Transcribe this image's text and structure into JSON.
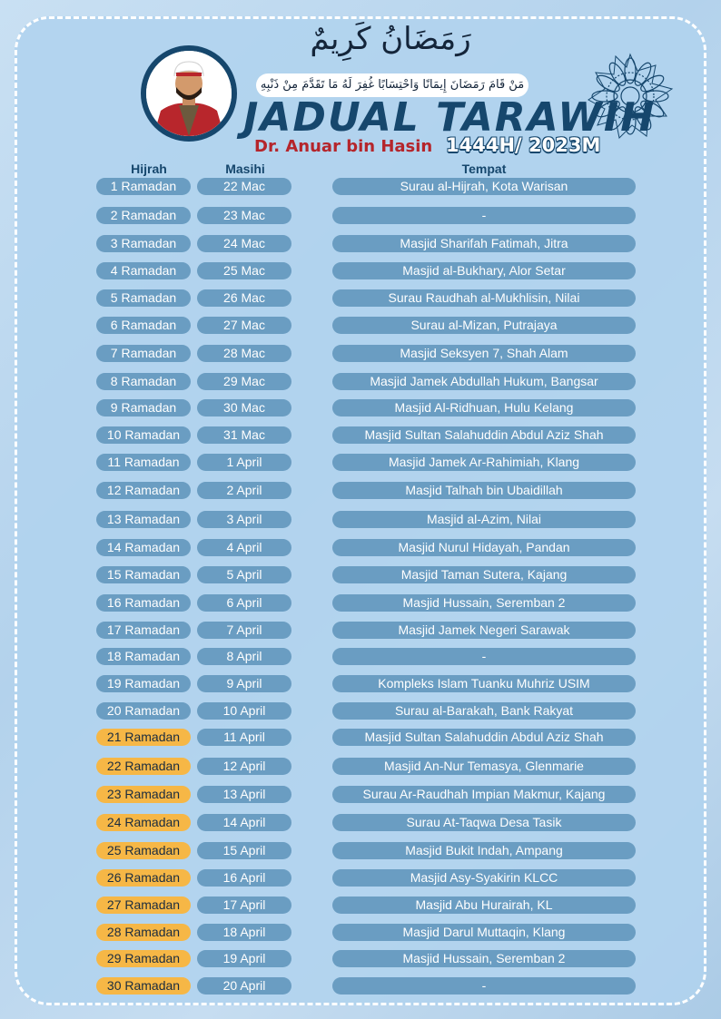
{
  "header": {
    "arabic_title": "رَمَضَانُ كَرِيمٌ",
    "arabic_hadith": "مَنْ قَامَ رَمَضَانَ إِيمَانًا وَاحْتِسَابًا غُفِرَ لَهُ مَا تَقَدَّمَ مِنْ ذَنْبِهِ",
    "title": "JADUAL TARAWIH",
    "author": "Dr. Anuar bin Hasin",
    "year": "1444H/ 2023M"
  },
  "columns": {
    "hijrah": "Hijrah",
    "masihi": "Masihi",
    "tempat": "Tempat"
  },
  "colors": {
    "blue_pill": "#6a9dc2",
    "orange_pill": "#f6b746",
    "navy": "#16476d",
    "red": "#b5252b"
  },
  "rows": [
    {
      "hijrah": "1 Ramadan",
      "masihi": "22 Mac",
      "tempat": "Surau al-Hijrah, Kota Warisan",
      "highlight": false
    },
    {
      "hijrah": "2 Ramadan",
      "masihi": "23 Mac",
      "tempat": "-",
      "highlight": false
    },
    {
      "hijrah": "3 Ramadan",
      "masihi": "24 Mac",
      "tempat": "Masjid Sharifah Fatimah, Jitra",
      "highlight": false
    },
    {
      "hijrah": "4 Ramadan",
      "masihi": "25 Mac",
      "tempat": "Masjid al-Bukhary, Alor Setar",
      "highlight": false
    },
    {
      "hijrah": "5 Ramadan",
      "masihi": "26 Mac",
      "tempat": "Surau Raudhah al-Mukhlisin, Nilai",
      "highlight": false
    },
    {
      "hijrah": "6 Ramadan",
      "masihi": "27 Mac",
      "tempat": "Surau al-Mizan, Putrajaya",
      "highlight": false
    },
    {
      "hijrah": "7 Ramadan",
      "masihi": "28 Mac",
      "tempat": "Masjid Seksyen 7, Shah Alam",
      "highlight": false
    },
    {
      "hijrah": "8 Ramadan",
      "masihi": "29 Mac",
      "tempat": "Masjid Jamek Abdullah Hukum, Bangsar",
      "highlight": false
    },
    {
      "hijrah": "9 Ramadan",
      "masihi": "30 Mac",
      "tempat": "Masjid Al-Ridhuan, Hulu Kelang",
      "highlight": false
    },
    {
      "hijrah": "10 Ramadan",
      "masihi": "31 Mac",
      "tempat": "Masjid Sultan Salahuddin Abdul Aziz Shah",
      "highlight": false
    },
    {
      "hijrah": "11 Ramadan",
      "masihi": "1 April",
      "tempat": "Masjid Jamek Ar-Rahimiah, Klang",
      "highlight": false
    },
    {
      "hijrah": "12 Ramadan",
      "masihi": "2 April",
      "tempat": "Masjid Talhah bin Ubaidillah",
      "highlight": false
    },
    {
      "hijrah": "13 Ramadan",
      "masihi": "3 April",
      "tempat": "Masjid al-Azim, Nilai",
      "highlight": false
    },
    {
      "hijrah": "14 Ramadan",
      "masihi": "4 April",
      "tempat": "Masjid Nurul Hidayah, Pandan",
      "highlight": false
    },
    {
      "hijrah": "15 Ramadan",
      "masihi": "5 April",
      "tempat": "Masjid Taman Sutera, Kajang",
      "highlight": false
    },
    {
      "hijrah": "16 Ramadan",
      "masihi": "6 April",
      "tempat": "Masjid Hussain, Seremban 2",
      "highlight": false
    },
    {
      "hijrah": "17 Ramadan",
      "masihi": "7 April",
      "tempat": "Masjid Jamek Negeri Sarawak",
      "highlight": false
    },
    {
      "hijrah": "18 Ramadan",
      "masihi": "8 April",
      "tempat": "-",
      "highlight": false
    },
    {
      "hijrah": "19 Ramadan",
      "masihi": "9 April",
      "tempat": "Kompleks Islam Tuanku Muhriz USIM",
      "highlight": false
    },
    {
      "hijrah": "20 Ramadan",
      "masihi": "10 April",
      "tempat": "Surau al-Barakah, Bank Rakyat",
      "highlight": false
    },
    {
      "hijrah": "21 Ramadan",
      "masihi": "11 April",
      "tempat": "Masjid Sultan Salahuddin Abdul Aziz Shah",
      "highlight": true
    },
    {
      "hijrah": "22 Ramadan",
      "masihi": "12 April",
      "tempat": "Masjid An-Nur Temasya, Glenmarie",
      "highlight": true
    },
    {
      "hijrah": "23 Ramadan",
      "masihi": "13 April",
      "tempat": "Surau Ar-Raudhah Impian Makmur, Kajang",
      "highlight": true
    },
    {
      "hijrah": "24 Ramadan",
      "masihi": "14 April",
      "tempat": "Surau At-Taqwa Desa Tasik",
      "highlight": true
    },
    {
      "hijrah": "25 Ramadan",
      "masihi": "15 April",
      "tempat": "Masjid Bukit Indah, Ampang",
      "highlight": true
    },
    {
      "hijrah": "26 Ramadan",
      "masihi": "16 April",
      "tempat": "Masjid Asy-Syakirin KLCC",
      "highlight": true
    },
    {
      "hijrah": "27 Ramadan",
      "masihi": "17 April",
      "tempat": "Masjid Abu Hurairah, KL",
      "highlight": true
    },
    {
      "hijrah": "28 Ramadan",
      "masihi": "18 April",
      "tempat": "Masjid Darul Muttaqin, Klang",
      "highlight": true
    },
    {
      "hijrah": "29 Ramadan",
      "masihi": "19 April",
      "tempat": "Masjid Hussain, Seremban 2",
      "highlight": true
    },
    {
      "hijrah": "30 Ramadan",
      "masihi": "20 April",
      "tempat": "-",
      "highlight": true
    }
  ]
}
